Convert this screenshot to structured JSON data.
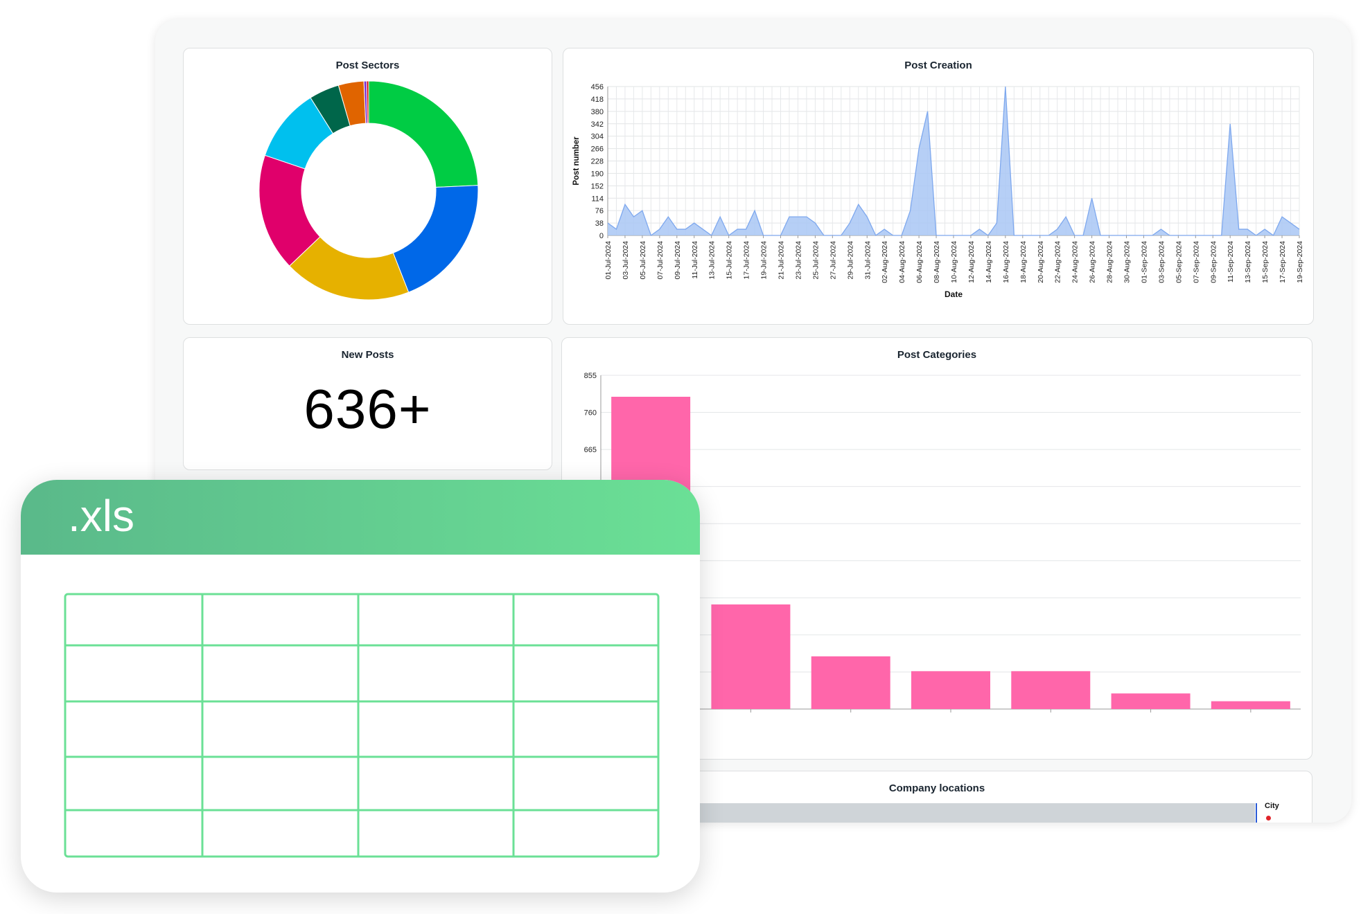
{
  "dashboard": {
    "sectors": {
      "title": "Post Sectors",
      "slices": [
        {
          "value": 24.5,
          "color": "#00cc44"
        },
        {
          "value": 20.0,
          "color": "#0068e8"
        },
        {
          "value": 19.0,
          "color": "#e6b100"
        },
        {
          "value": 17.5,
          "color": "#e0006b"
        },
        {
          "value": 11.0,
          "color": "#00c0ee"
        },
        {
          "value": 4.5,
          "color": "#00664a"
        },
        {
          "value": 3.8,
          "color": "#e06400"
        },
        {
          "value": 0.4,
          "color": "#7a2fd0"
        },
        {
          "value": 0.3,
          "color": "#d00000"
        }
      ]
    },
    "new_posts": {
      "title": "New Posts",
      "value": "636+"
    },
    "creation": {
      "title": "Post Creation",
      "xlabel": "Date",
      "ylabel": "Post number",
      "y_ticks": [
        "0",
        "38",
        "76",
        "114",
        "152",
        "190",
        "228",
        "266",
        "304",
        "342",
        "380",
        "418",
        "456"
      ],
      "x_tick_labels": [
        "01-Jul-2024",
        "03-Jul-2024",
        "05-Jul-2024",
        "07-Jul-2024",
        "09-Jul-2024",
        "11-Jul-2024",
        "13-Jul-2024",
        "15-Jul-2024",
        "17-Jul-2024",
        "19-Jul-2024",
        "21-Jul-2024",
        "23-Jul-2024",
        "25-Jul-2024",
        "27-Jul-2024",
        "29-Jul-2024",
        "31-Jul-2024",
        "02-Aug-2024",
        "04-Aug-2024",
        "06-Aug-2024",
        "08-Aug-2024",
        "10-Aug-2024",
        "12-Aug-2024",
        "14-Aug-2024",
        "16-Aug-2024",
        "18-Aug-2024",
        "20-Aug-2024",
        "22-Aug-2024",
        "24-Aug-2024",
        "26-Aug-2024",
        "28-Aug-2024",
        "30-Aug-2024",
        "01-Sep-2024",
        "03-Sep-2024",
        "05-Sep-2024",
        "07-Sep-2024",
        "09-Sep-2024",
        "11-Sep-2024",
        "13-Sep-2024",
        "15-Sep-2024",
        "17-Sep-2024",
        "19-Sep-2024"
      ]
    },
    "categories": {
      "title": "Post Categories",
      "y_ticks": [
        "855",
        "760",
        "665"
      ]
    },
    "locations": {
      "title": "Company locations",
      "legend_title": "City"
    }
  },
  "chart_data": [
    {
      "type": "pie",
      "title": "Post Sectors",
      "values": [
        24.5,
        20.0,
        19.0,
        17.5,
        11.0,
        4.5,
        3.8,
        0.4,
        0.3
      ]
    },
    {
      "type": "area",
      "title": "Post Creation",
      "xlabel": "Date",
      "ylabel": "Post number",
      "ylim": [
        0,
        456
      ],
      "x_start": "01-Jul-2024",
      "x_end": "20-Sep-2024",
      "values": [
        38,
        19,
        95,
        57,
        76,
        0,
        19,
        57,
        19,
        19,
        38,
        19,
        0,
        57,
        0,
        19,
        19,
        76,
        0,
        0,
        0,
        57,
        57,
        57,
        38,
        0,
        0,
        0,
        38,
        95,
        57,
        0,
        19,
        0,
        0,
        76,
        266,
        380,
        0,
        0,
        0,
        0,
        0,
        19,
        0,
        38,
        456,
        0,
        0,
        0,
        0,
        0,
        19,
        57,
        0,
        0,
        114,
        0,
        0,
        0,
        0,
        0,
        0,
        0,
        19,
        0,
        0,
        0,
        0,
        0,
        0,
        0,
        342,
        19,
        19,
        0,
        19,
        0,
        57,
        38,
        19
      ],
      "grid": true
    },
    {
      "type": "bar",
      "title": "Post Categories",
      "values": [
        800,
        268,
        135,
        97,
        97,
        40,
        20
      ],
      "ylim": [
        0,
        855
      ],
      "color": "#ff66aa"
    }
  ],
  "xls": {
    "label": ".xls"
  }
}
